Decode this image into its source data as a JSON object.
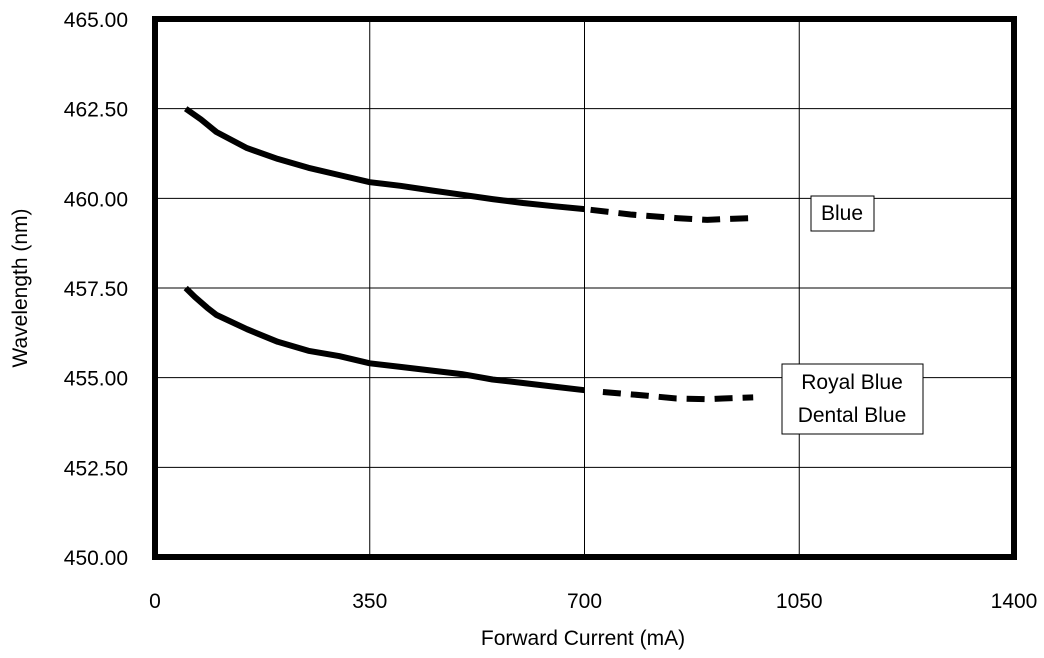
{
  "chart_data": {
    "type": "line",
    "title": "",
    "xlabel": "Forward Current (mA)",
    "ylabel": "Wavelength (nm)",
    "xlim": [
      0,
      1400
    ],
    "ylim": [
      450.0,
      465.0
    ],
    "x_ticks": [
      "0",
      "350",
      "700",
      "1050",
      "1400"
    ],
    "y_ticks": [
      "450.00",
      "452.50",
      "455.00",
      "457.50",
      "460.00",
      "462.50",
      "465.00"
    ],
    "grid": true,
    "series": [
      {
        "name": "Blue",
        "color": "#000000",
        "solid": {
          "x": [
            50,
            75,
            100,
            150,
            200,
            250,
            300,
            350,
            400,
            450,
            500,
            550,
            600,
            650,
            700
          ],
          "y": [
            462.5,
            462.2,
            461.85,
            461.4,
            461.1,
            460.85,
            460.65,
            460.45,
            460.35,
            460.22,
            460.1,
            459.98,
            459.87,
            459.78,
            459.7
          ]
        },
        "dashed": {
          "x": [
            710,
            775,
            850,
            900,
            925,
            975
          ],
          "y": [
            459.68,
            459.55,
            459.45,
            459.4,
            459.42,
            459.45
          ]
        }
      },
      {
        "name": "Royal Blue Dental Blue",
        "label_lines": [
          "Royal Blue",
          "Dental Blue"
        ],
        "color": "#000000",
        "solid": {
          "x": [
            50,
            65,
            85,
            100,
            150,
            200,
            250,
            300,
            350,
            400,
            450,
            500,
            550,
            600,
            650,
            700
          ],
          "y": [
            457.5,
            457.25,
            456.95,
            456.75,
            456.35,
            456.0,
            455.75,
            455.6,
            455.4,
            455.3,
            455.2,
            455.1,
            454.95,
            454.85,
            454.75,
            454.65
          ]
        },
        "dashed": {
          "x": [
            730,
            800,
            850,
            900,
            925,
            975
          ],
          "y": [
            454.6,
            454.5,
            454.42,
            454.4,
            454.42,
            454.45
          ]
        }
      }
    ]
  }
}
